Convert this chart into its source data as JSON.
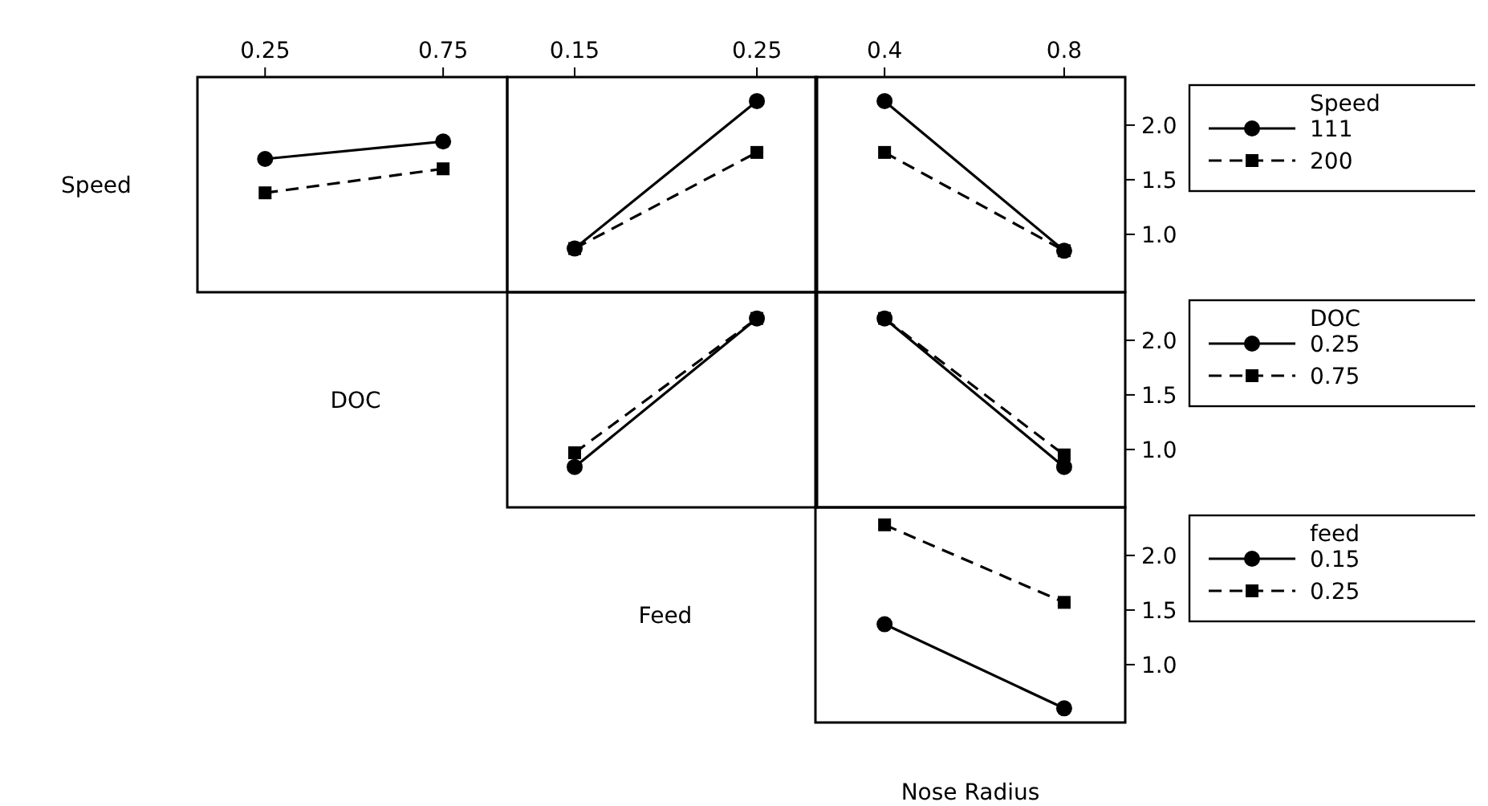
{
  "chart_data": [
    {
      "type": "line",
      "ylabel": "Speed",
      "x": [
        0.25,
        0.75
      ],
      "xlim": [
        0.06,
        0.93
      ],
      "xticks": [
        0.25,
        0.75
      ],
      "ylim": [
        0.47,
        2.44
      ],
      "tick_labels": "x",
      "series": [
        {
          "color": "#000000",
          "marker": "circle",
          "line_style": "solid",
          "values": [
            1.69,
            1.85
          ]
        },
        {
          "color": "#000000",
          "marker": "square",
          "line_style": "dashed",
          "values": [
            1.38,
            1.6
          ]
        }
      ]
    },
    {
      "type": "line",
      "x": [
        0.15,
        0.25
      ],
      "xlim": [
        0.113,
        0.283
      ],
      "xticks": [
        0.15,
        0.25
      ],
      "ylim": [
        0.47,
        2.44
      ],
      "tick_labels": "x",
      "series": [
        {
          "color": "#000000",
          "marker": "circle",
          "line_style": "solid",
          "values": [
            0.87,
            2.22
          ]
        },
        {
          "color": "#000000",
          "marker": "square",
          "line_style": "dashed",
          "values": [
            0.87,
            1.75
          ]
        }
      ]
    },
    {
      "type": "line",
      "legend": "right",
      "legend_title": "Speed",
      "x": [
        0.4,
        0.8
      ],
      "xlim": [
        0.246,
        0.936
      ],
      "xticks": [
        0.4,
        0.8
      ],
      "ylim": [
        0.47,
        2.44
      ],
      "yticks": [
        {
          "value": 1.0,
          "label": "1.0"
        },
        {
          "value": 1.5,
          "label": "1.5"
        },
        {
          "value": 2.0,
          "label": "2.0"
        }
      ],
      "series": [
        {
          "name": "111",
          "color": "#000000",
          "marker": "circle",
          "line_style": "solid",
          "values": [
            2.22,
            0.85
          ]
        },
        {
          "name": "200",
          "color": "#000000",
          "marker": "square",
          "line_style": "dashed",
          "values": [
            1.75,
            0.85
          ]
        }
      ]
    },
    {
      "type": "line",
      "ylabel": "DOC",
      "x": [
        0.15,
        0.25
      ],
      "xlim": [
        0.113,
        0.283
      ],
      "ylim": [
        0.47,
        2.44
      ],
      "tick_labels": false,
      "series": [
        {
          "color": "#000000",
          "marker": "circle",
          "line_style": "solid",
          "values": [
            0.84,
            2.2
          ]
        },
        {
          "color": "#000000",
          "marker": "square",
          "line_style": "dashed",
          "values": [
            0.97,
            2.2
          ]
        }
      ]
    },
    {
      "type": "line",
      "legend": "right",
      "legend_title": "DOC",
      "x": [
        0.4,
        0.8
      ],
      "xlim": [
        0.246,
        0.936
      ],
      "ylim": [
        0.47,
        2.44
      ],
      "yticks": [
        {
          "value": 1.0,
          "label": "1.0"
        },
        {
          "value": 1.5,
          "label": "1.5"
        },
        {
          "value": 2.0,
          "label": "2.0"
        }
      ],
      "tick_labels": "y",
      "series": [
        {
          "name": "0.25",
          "color": "#000000",
          "marker": "circle",
          "line_style": "solid",
          "values": [
            2.2,
            0.84
          ]
        },
        {
          "name": "0.75",
          "color": "#000000",
          "marker": "square",
          "line_style": "dashed",
          "values": [
            2.2,
            0.95
          ]
        }
      ]
    },
    {
      "type": "line",
      "ylabel": "Feed",
      "xlabel": "Nose Radius",
      "legend": "right",
      "legend_title": "feed",
      "x": [
        0.4,
        0.8
      ],
      "xlim": [
        0.246,
        0.936
      ],
      "ylim": [
        0.47,
        2.44
      ],
      "yticks": [
        {
          "value": 1.0,
          "label": "1.0"
        },
        {
          "value": 1.5,
          "label": "1.5"
        },
        {
          "value": 2.0,
          "label": "2.0"
        }
      ],
      "tick_labels": "y",
      "series": [
        {
          "name": "0.15",
          "color": "#000000",
          "marker": "circle",
          "line_style": "solid",
          "values": [
            1.37,
            0.6
          ]
        },
        {
          "name": "0.25",
          "color": "#000000",
          "marker": "square",
          "line_style": "dashed",
          "values": [
            2.28,
            1.57
          ]
        }
      ]
    }
  ]
}
